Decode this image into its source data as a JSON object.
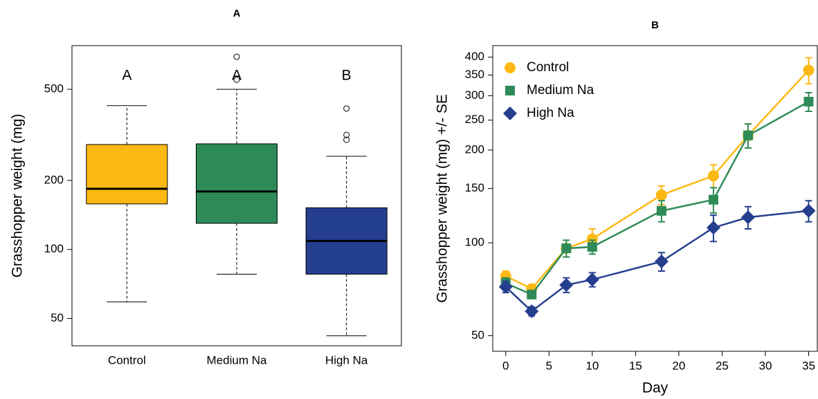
{
  "chart_data": [
    {
      "type": "box",
      "title": "A",
      "ylabel": "Grasshopper weight (mg)",
      "categories": [
        "Control",
        "Medium Na",
        "High Na"
      ],
      "colors": [
        "#fdb913",
        "#2e8b57",
        "#253f8f"
      ],
      "group_labels": [
        "A",
        "A",
        "B"
      ],
      "boxes": [
        {
          "whisker_low": 59,
          "q1": 158,
          "median": 184,
          "q3": 287,
          "whisker_high": 424,
          "outliers": []
        },
        {
          "whisker_low": 78,
          "q1": 130,
          "median": 179,
          "q3": 289,
          "whisker_high": 500,
          "outliers": [
            693,
            550
          ]
        },
        {
          "whisker_low": 42,
          "q1": 78,
          "median": 109,
          "q3": 152,
          "whisker_high": 255,
          "outliers": [
            412,
            316,
            301
          ]
        }
      ],
      "log_y": true,
      "ylim": [
        38,
        775
      ],
      "yticks": [
        50,
        100,
        200,
        500
      ]
    },
    {
      "type": "line",
      "title": "B",
      "xlabel": "Day",
      "ylabel": "Grasshopper weight (mg) +/- SE",
      "x": [
        0,
        3,
        7,
        10,
        18,
        24,
        28,
        35
      ],
      "series": [
        {
          "name": "Control",
          "color": "#fdb913",
          "marker": "circle",
          "values": [
            78,
            71,
            96,
            103,
            143,
            165,
            223,
            363
          ],
          "errors": [
            3,
            2,
            6,
            8,
            10,
            14,
            20,
            35
          ]
        },
        {
          "name": "Medium Na",
          "color": "#2e8b57",
          "marker": "square",
          "values": [
            74,
            68,
            96,
            97,
            127,
            138,
            223,
            287
          ],
          "errors": [
            3,
            2,
            6,
            5,
            10,
            13,
            20,
            20
          ]
        },
        {
          "name": "High Na",
          "color": "#253f8f",
          "marker": "diamond",
          "values": [
            72,
            60,
            73,
            76,
            87,
            112,
            121,
            127
          ],
          "errors": [
            3,
            2,
            4,
            4,
            6,
            11,
            10,
            10
          ]
        }
      ],
      "log_y": true,
      "xlim": [
        -1.5,
        36
      ],
      "ylim": [
        44.5,
        436
      ],
      "xticks": [
        0,
        5,
        10,
        15,
        20,
        25,
        30,
        35
      ],
      "yticks": [
        50,
        100,
        150,
        200,
        250,
        300,
        350,
        400
      ],
      "legend": "upper left"
    }
  ]
}
